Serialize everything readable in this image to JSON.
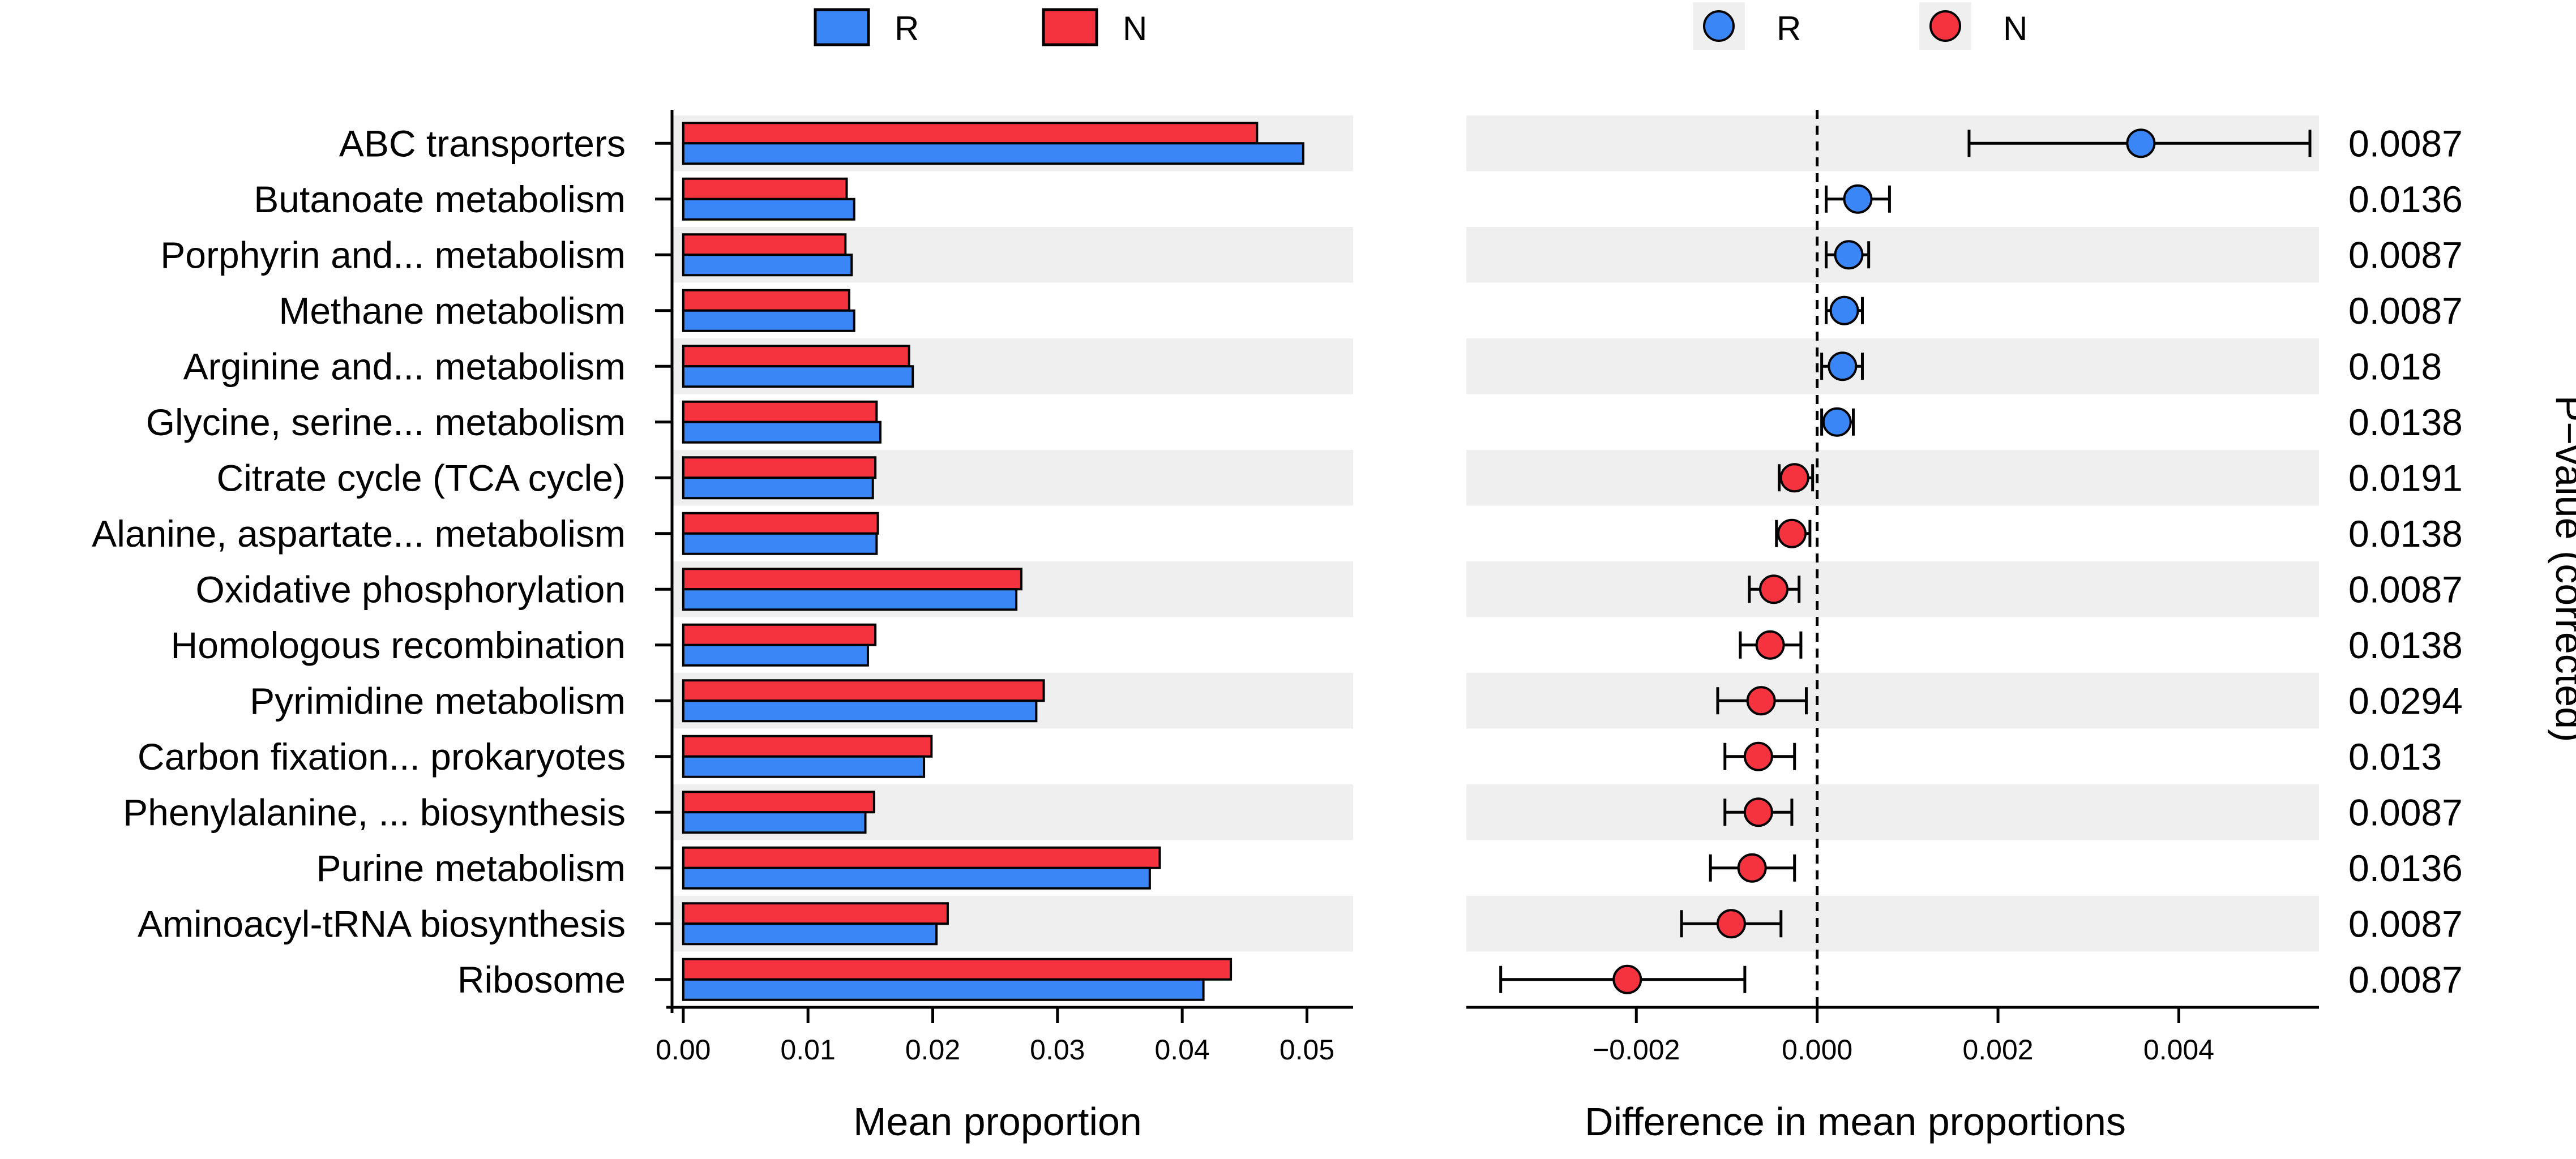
{
  "chart_data": [
    {
      "type": "bar",
      "orientation": "horizontal",
      "title": "",
      "xlabel": "Mean proportion",
      "ylabel": "",
      "xlim": [
        -0.0009,
        0.0537
      ],
      "xticks": [
        0.0,
        0.01,
        0.02,
        0.03,
        0.04,
        0.05
      ],
      "xtick_labels": [
        "0.00",
        "0.01",
        "0.02",
        "0.03",
        "0.04",
        "0.05"
      ],
      "categories": [
        "ABC transporters",
        "Butanoate metabolism",
        "Porphyrin and... metabolism",
        "Methane metabolism",
        "Arginine and... metabolism",
        "Glycine, serine... metabolism",
        "Citrate cycle (TCA cycle)",
        "Alanine, aspartate... metabolism",
        "Oxidative phosphorylation",
        "Homologous recombination",
        "Pyrimidine metabolism",
        "Carbon fixation... prokaryotes",
        "Phenylalanine, ... biosynthesis",
        "Purine metabolism",
        "Aminoacyl-tRNA biosynthesis",
        "Ribosome"
      ],
      "series": [
        {
          "name": "N",
          "color": "#f5333f",
          "values": [
            0.046,
            0.0131,
            0.013,
            0.0133,
            0.0181,
            0.0155,
            0.0154,
            0.0156,
            0.0271,
            0.0154,
            0.0289,
            0.0199,
            0.0153,
            0.0382,
            0.0212,
            0.0439
          ]
        },
        {
          "name": "R",
          "color": "#3b86f7",
          "values": [
            0.0497,
            0.0137,
            0.0135,
            0.0137,
            0.0184,
            0.0158,
            0.0152,
            0.0155,
            0.0267,
            0.0148,
            0.0283,
            0.0193,
            0.0146,
            0.0374,
            0.0203,
            0.0417
          ]
        }
      ],
      "legend": {
        "position": "top",
        "items": [
          {
            "name": "R",
            "color": "#3b86f7"
          },
          {
            "name": "N",
            "color": "#f5333f"
          }
        ]
      },
      "grid": false
    },
    {
      "type": "scatter",
      "subtype": "errorbar",
      "title": "",
      "xlabel": "Difference in mean proportions",
      "ylabel": "P−value (corrected)",
      "xlim": [
        -0.00388,
        0.00555
      ],
      "xticks": [
        -0.002,
        0.0,
        0.002,
        0.004
      ],
      "xtick_labels": [
        "−0.002",
        "0.000",
        "0.002",
        "0.004"
      ],
      "reference_line": 0,
      "points": [
        {
          "diff": 0.00358,
          "ci": [
            0.00168,
            0.00545
          ],
          "group": "R"
        },
        {
          "diff": 0.00045,
          "ci": [
            0.0001,
            0.0008
          ],
          "group": "R"
        },
        {
          "diff": 0.00035,
          "ci": [
            0.0001,
            0.00057
          ],
          "group": "R"
        },
        {
          "diff": 0.0003,
          "ci": [
            0.0001,
            0.0005
          ],
          "group": "R"
        },
        {
          "diff": 0.00028,
          "ci": [
            5e-05,
            0.0005
          ],
          "group": "R"
        },
        {
          "diff": 0.00022,
          "ci": [
            5e-05,
            0.0004
          ],
          "group": "R"
        },
        {
          "diff": -0.00025,
          "ci": [
            -0.00042,
            -5e-05
          ],
          "group": "N"
        },
        {
          "diff": -0.00028,
          "ci": [
            -0.00045,
            -8e-05
          ],
          "group": "N"
        },
        {
          "diff": -0.00048,
          "ci": [
            -0.00075,
            -0.0002
          ],
          "group": "N"
        },
        {
          "diff": -0.00052,
          "ci": [
            -0.00085,
            -0.00018
          ],
          "group": "N"
        },
        {
          "diff": -0.00062,
          "ci": [
            -0.0011,
            -0.00012
          ],
          "group": "N"
        },
        {
          "diff": -0.00065,
          "ci": [
            -0.00102,
            -0.00025
          ],
          "group": "N"
        },
        {
          "diff": -0.00065,
          "ci": [
            -0.00102,
            -0.00028
          ],
          "group": "N"
        },
        {
          "diff": -0.00072,
          "ci": [
            -0.00118,
            -0.00025
          ],
          "group": "N"
        },
        {
          "diff": -0.00095,
          "ci": [
            -0.0015,
            -0.0004
          ],
          "group": "N"
        },
        {
          "diff": -0.0021,
          "ci": [
            -0.0035,
            -0.0008
          ],
          "group": "N"
        }
      ],
      "pvalues": [
        "0.0087",
        "0.0136",
        "0.0087",
        "0.0087",
        "0.018",
        "0.0138",
        "0.0191",
        "0.0138",
        "0.0087",
        "0.0138",
        "0.0294",
        "0.013",
        "0.0087",
        "0.0136",
        "0.0087",
        "0.0087"
      ],
      "legend": {
        "position": "top",
        "items": [
          {
            "name": "R",
            "color": "#3b86f7"
          },
          {
            "name": "N",
            "color": "#f5333f"
          }
        ]
      },
      "grid": false
    }
  ]
}
